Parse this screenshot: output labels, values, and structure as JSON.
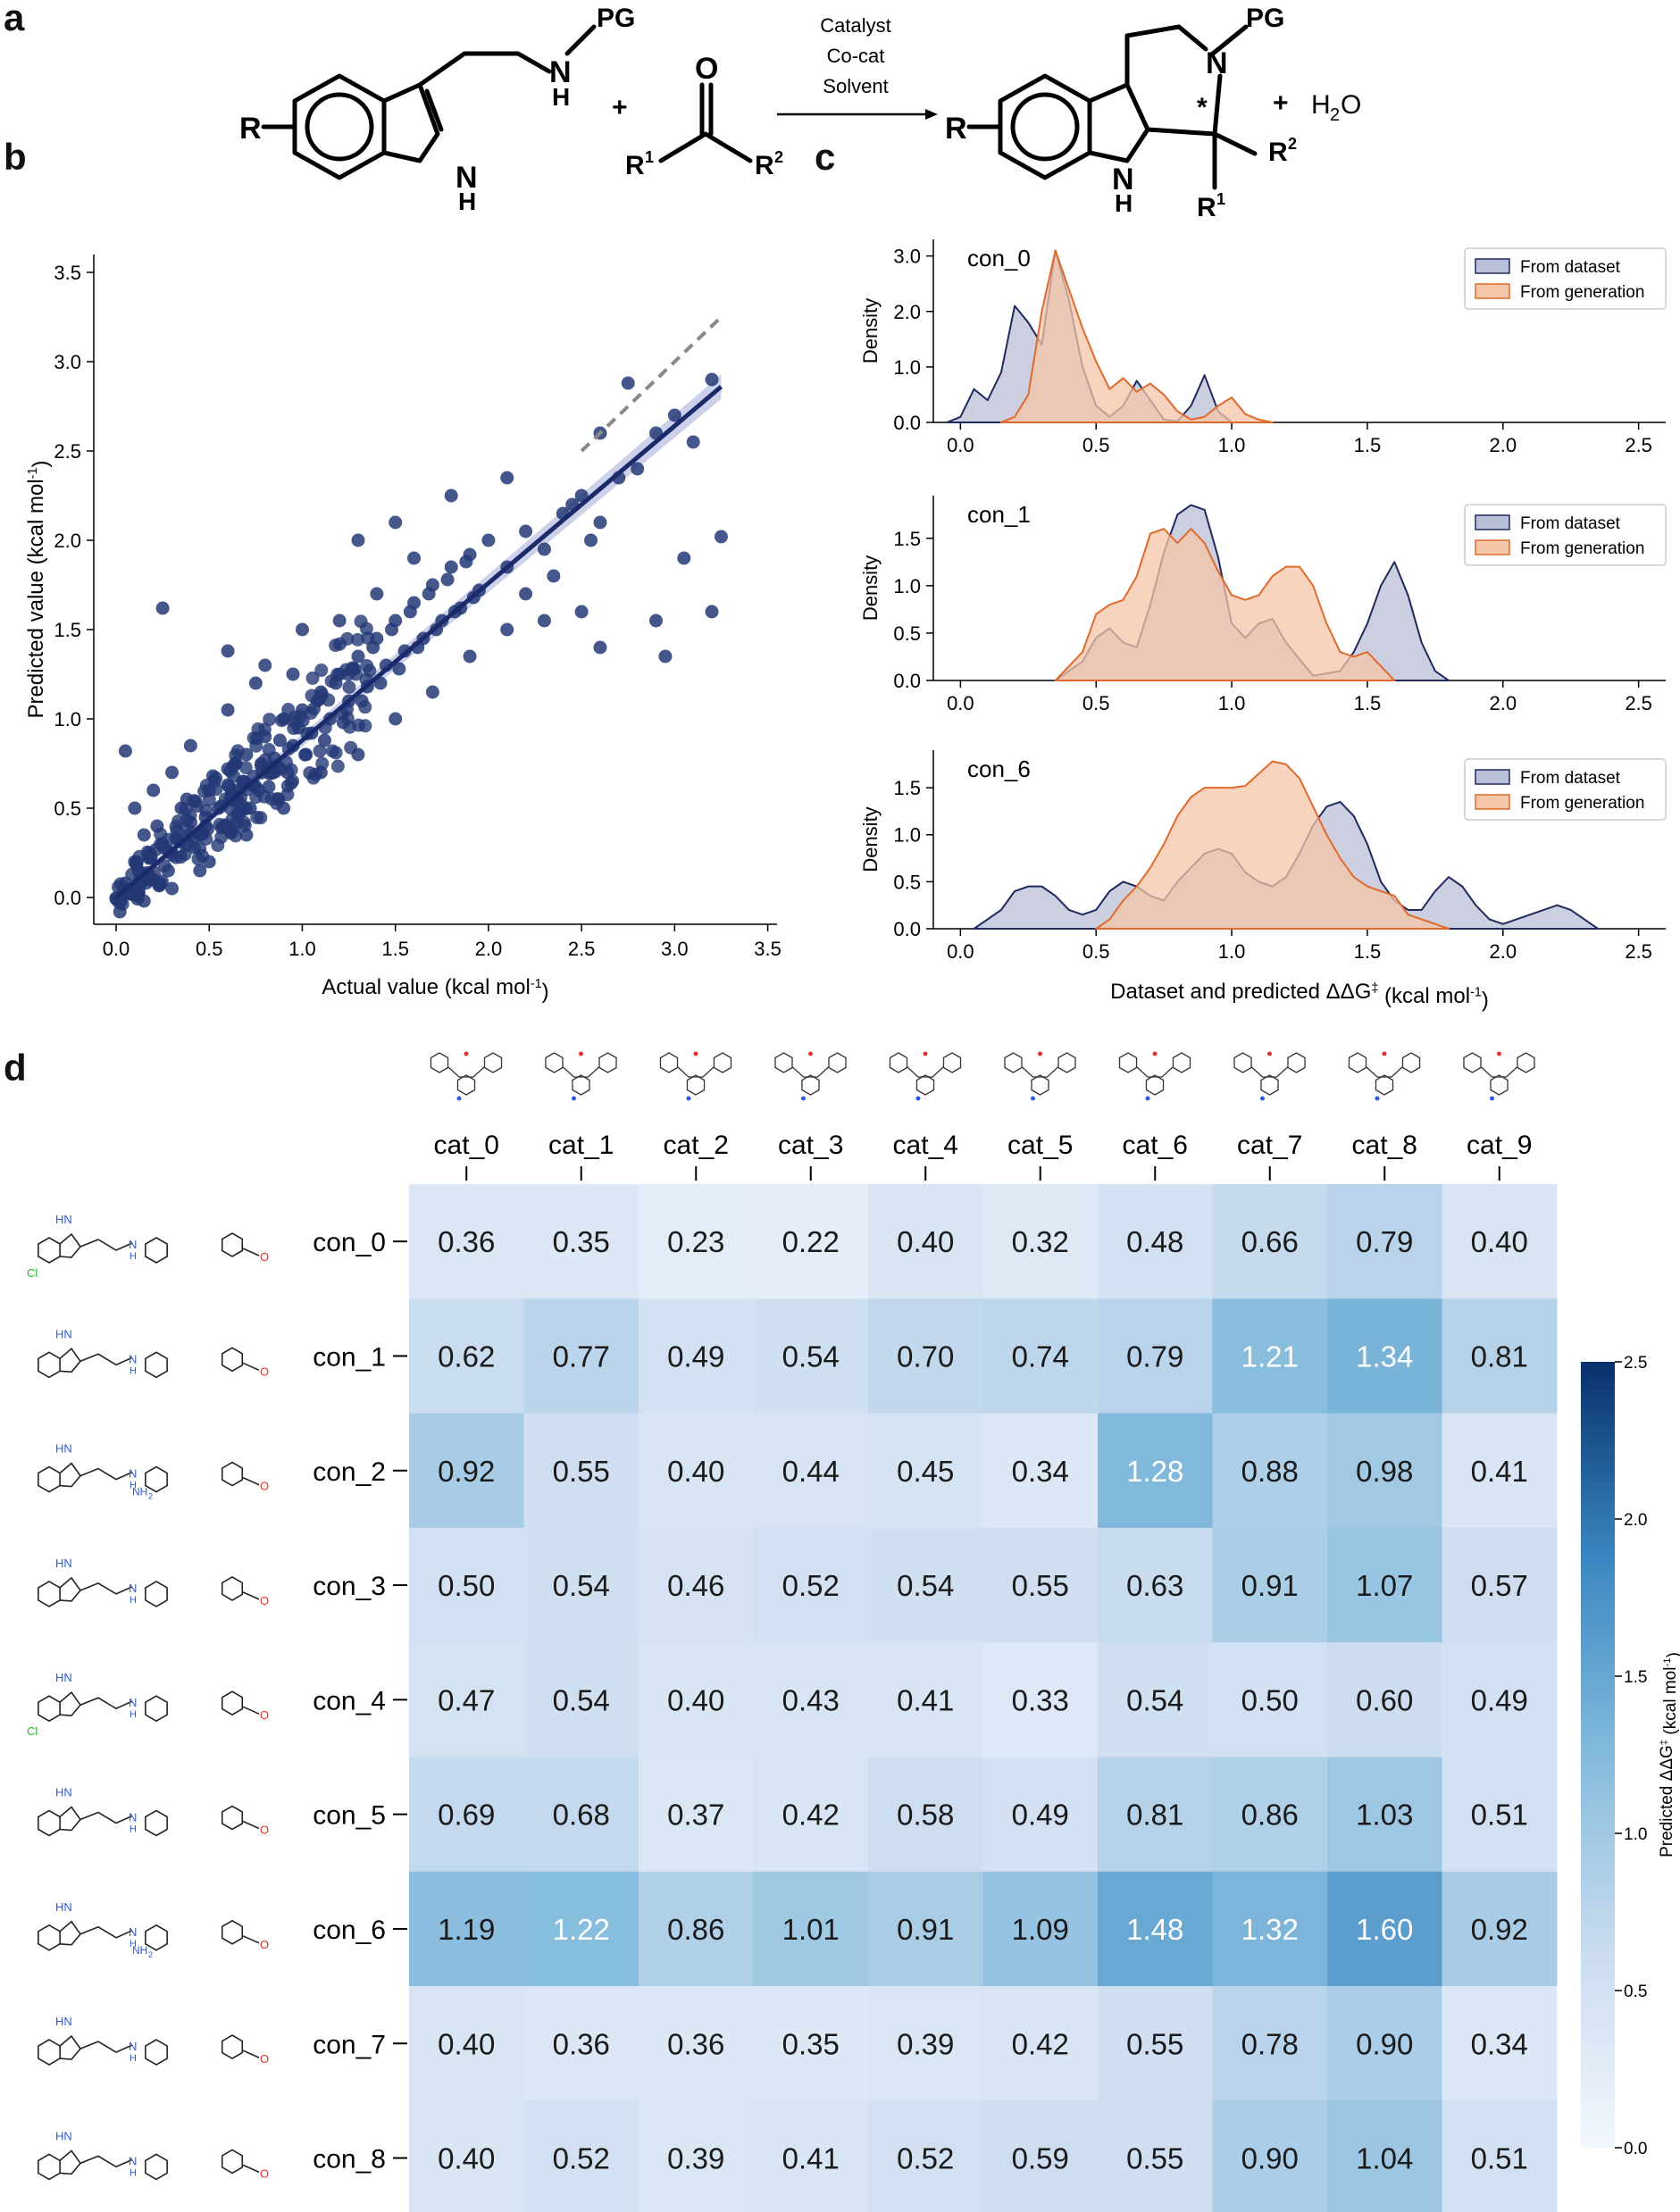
{
  "panels": {
    "a": "a",
    "b": "b",
    "c": "c",
    "d": "d"
  },
  "scheme": {
    "reactant1": {
      "R": "R",
      "PG": "PG",
      "NH": "N",
      "H": "H",
      "NH_indole": "N",
      "H_indole": "H"
    },
    "plus1": "+",
    "ketone": {
      "O": "O",
      "R1": "R",
      "R1_sup": "1",
      "R2": "R",
      "R2_sup": "2"
    },
    "conditions": [
      "Catalyst",
      "Co-cat",
      "Solvent"
    ],
    "product": {
      "R": "R",
      "PG": "PG",
      "N": "N",
      "star": "*",
      "NH": "N",
      "H": "H",
      "R1": "R",
      "R1_sup": "1",
      "R2": "R",
      "R2_sup": "2"
    },
    "plus2": "+",
    "water": {
      "H": "H",
      "sub": "2",
      "O": "O"
    }
  },
  "chart_data": [
    {
      "id": "b",
      "type": "scatter",
      "xlabel": "Actual value (kcal mol",
      "xlabel_sup": "-1",
      "xlabel_end": ")",
      "ylabel": "Predicted value (kcal mol",
      "ylabel_sup": "-1",
      "ylabel_end": ")",
      "xlim": [
        -0.12,
        3.55
      ],
      "ylim": [
        -0.15,
        3.6
      ],
      "xticks": [
        "0.0",
        "0.5",
        "1.0",
        "1.5",
        "2.0",
        "2.5",
        "3.0",
        "3.5"
      ],
      "yticks": [
        "0.0",
        "0.5",
        "1.0",
        "1.5",
        "2.0",
        "2.5",
        "3.0",
        "3.5"
      ],
      "fit": {
        "slope": 0.88,
        "intercept": 0.0,
        "x_range": [
          0.0,
          3.25
        ]
      },
      "identity_line": {
        "x_range": [
          2.5,
          3.25
        ]
      },
      "points": [
        [
          0.05,
          0.08
        ],
        [
          0.1,
          0.2
        ],
        [
          0.15,
          0.35
        ],
        [
          0.2,
          0.1
        ],
        [
          0.25,
          0.3
        ],
        [
          0.3,
          0.25
        ],
        [
          0.35,
          0.5
        ],
        [
          0.4,
          0.42
        ],
        [
          0.45,
          0.35
        ],
        [
          0.5,
          0.6
        ],
        [
          0.55,
          0.5
        ],
        [
          0.6,
          0.72
        ],
        [
          0.65,
          0.55
        ],
        [
          0.7,
          0.8
        ],
        [
          0.75,
          0.62
        ],
        [
          0.8,
          0.9
        ],
        [
          0.85,
          0.78
        ],
        [
          0.9,
          1.0
        ],
        [
          0.95,
          0.85
        ],
        [
          1.0,
          1.05
        ],
        [
          1.05,
          0.92
        ],
        [
          1.1,
          1.15
        ],
        [
          1.15,
          1.0
        ],
        [
          1.2,
          1.25
        ],
        [
          1.25,
          1.1
        ],
        [
          1.3,
          1.35
        ],
        [
          1.35,
          1.18
        ],
        [
          1.4,
          1.45
        ],
        [
          1.45,
          1.3
        ],
        [
          1.5,
          1.55
        ],
        [
          1.55,
          1.38
        ],
        [
          1.6,
          1.65
        ],
        [
          1.65,
          1.45
        ],
        [
          1.7,
          1.75
        ],
        [
          1.75,
          1.55
        ],
        [
          1.8,
          1.85
        ],
        [
          1.85,
          1.62
        ],
        [
          1.9,
          1.92
        ],
        [
          1.95,
          1.72
        ],
        [
          2.0,
          2.0
        ],
        [
          2.1,
          1.85
        ],
        [
          2.2,
          2.05
        ],
        [
          2.3,
          1.95
        ],
        [
          2.4,
          2.15
        ],
        [
          2.5,
          2.25
        ],
        [
          2.6,
          2.1
        ],
        [
          2.7,
          2.35
        ],
        [
          2.75,
          2.88
        ],
        [
          2.8,
          2.4
        ],
        [
          2.9,
          2.6
        ],
        [
          3.0,
          2.7
        ],
        [
          3.1,
          2.55
        ],
        [
          3.2,
          2.9
        ],
        [
          3.25,
          2.02
        ],
        [
          3.2,
          1.6
        ],
        [
          3.05,
          1.9
        ],
        [
          2.9,
          1.55
        ],
        [
          2.95,
          1.35
        ],
        [
          2.5,
          1.6
        ],
        [
          2.6,
          1.4
        ],
        [
          2.3,
          1.55
        ],
        [
          2.2,
          1.7
        ],
        [
          0.25,
          1.62
        ],
        [
          0.6,
          1.38
        ],
        [
          0.75,
          1.2
        ],
        [
          1.5,
          2.1
        ],
        [
          1.8,
          2.25
        ],
        [
          2.1,
          2.35
        ],
        [
          1.3,
          2.0
        ],
        [
          1.0,
          1.5
        ],
        [
          0.8,
          1.3
        ],
        [
          0.6,
          1.05
        ],
        [
          0.4,
          0.85
        ],
        [
          0.3,
          0.7
        ],
        [
          0.2,
          0.6
        ],
        [
          0.1,
          0.5
        ],
        [
          0.05,
          0.82
        ],
        [
          0.5,
          0.2
        ],
        [
          0.7,
          0.35
        ],
        [
          0.9,
          0.5
        ],
        [
          1.1,
          0.7
        ],
        [
          1.3,
          0.8
        ],
        [
          1.5,
          1.0
        ],
        [
          1.7,
          1.15
        ],
        [
          1.9,
          1.35
        ],
        [
          2.1,
          1.5
        ],
        [
          0.15,
          -0.02
        ],
        [
          0.3,
          0.05
        ],
        [
          0.45,
          0.15
        ],
        [
          0.02,
          -0.08
        ],
        [
          0.08,
          0.02
        ],
        [
          0.12,
          0.15
        ],
        [
          0.18,
          0.25
        ],
        [
          0.22,
          0.4
        ],
        [
          0.28,
          0.15
        ],
        [
          0.33,
          0.33
        ],
        [
          0.38,
          0.55
        ],
        [
          0.42,
          0.28
        ],
        [
          0.48,
          0.45
        ],
        [
          0.52,
          0.68
        ],
        [
          0.58,
          0.4
        ],
        [
          0.62,
          0.58
        ],
        [
          0.68,
          0.65
        ],
        [
          0.72,
          0.5
        ],
        [
          0.78,
          0.75
        ],
        [
          0.82,
          0.62
        ],
        [
          0.88,
          0.88
        ],
        [
          0.92,
          0.7
        ],
        [
          0.98,
          0.95
        ],
        [
          1.02,
          0.8
        ],
        [
          1.08,
          1.1
        ],
        [
          1.12,
          0.88
        ],
        [
          1.18,
          1.2
        ],
        [
          1.22,
          0.98
        ],
        [
          1.28,
          1.28
        ],
        [
          1.32,
          1.1
        ],
        [
          1.38,
          1.4
        ],
        [
          1.42,
          1.2
        ],
        [
          1.48,
          1.5
        ],
        [
          1.52,
          1.28
        ],
        [
          1.58,
          1.6
        ],
        [
          1.62,
          1.4
        ],
        [
          1.68,
          1.7
        ],
        [
          1.72,
          1.5
        ],
        [
          1.78,
          1.78
        ],
        [
          1.82,
          1.6
        ],
        [
          1.88,
          1.88
        ],
        [
          1.92,
          1.68
        ],
        [
          2.6,
          2.6
        ],
        [
          2.45,
          2.2
        ],
        [
          2.55,
          2.0
        ],
        [
          2.35,
          1.8
        ],
        [
          1.6,
          1.9
        ],
        [
          1.4,
          1.7
        ],
        [
          1.2,
          1.55
        ],
        [
          0.95,
          1.25
        ]
      ]
    },
    {
      "id": "c",
      "type": "area",
      "xlabel": "Dataset and predicted ΔΔG",
      "xlabel_sup": "‡",
      "xlabel_end": " (kcal mol",
      "xlabel_sup2": "-1",
      "xlabel_end2": ")",
      "ylabel": "Density",
      "xlim": [
        -0.1,
        2.6
      ],
      "xticks": [
        "0.0",
        "0.5",
        "1.0",
        "1.5",
        "2.0",
        "2.5"
      ],
      "legend": [
        "From dataset",
        "From generation"
      ],
      "colors": {
        "dataset": "#1f2a5e",
        "dataset_fill": "#b9bfd6",
        "generation": "#e06a2c",
        "generation_fill": "#f5c6a8"
      },
      "subplots": [
        {
          "label": "con_0",
          "ylim": [
            0,
            3.3
          ],
          "yticks": [
            "0.0",
            "1.0",
            "2.0",
            "3.0"
          ],
          "dataset": {
            "x": [
              -0.05,
              0.0,
              0.05,
              0.1,
              0.15,
              0.2,
              0.25,
              0.3,
              0.35,
              0.4,
              0.45,
              0.5,
              0.55,
              0.6,
              0.65,
              0.7,
              0.75,
              0.8,
              0.85,
              0.9,
              0.95,
              1.0,
              1.05
            ],
            "y": [
              0.0,
              0.1,
              0.6,
              0.4,
              0.9,
              2.1,
              1.8,
              1.4,
              3.1,
              2.2,
              1.0,
              0.3,
              0.1,
              0.3,
              0.75,
              0.4,
              0.05,
              0.02,
              0.3,
              0.85,
              0.2,
              0.0,
              0.0
            ]
          },
          "generation": {
            "x": [
              0.15,
              0.2,
              0.25,
              0.3,
              0.35,
              0.4,
              0.45,
              0.5,
              0.55,
              0.6,
              0.65,
              0.7,
              0.75,
              0.8,
              0.85,
              0.9,
              0.95,
              1.0,
              1.05,
              1.1,
              1.15
            ],
            "y": [
              0.0,
              0.1,
              0.5,
              2.0,
              3.1,
              2.4,
              1.7,
              1.1,
              0.6,
              0.8,
              0.55,
              0.7,
              0.5,
              0.2,
              0.05,
              0.1,
              0.3,
              0.45,
              0.15,
              0.05,
              0.0
            ]
          }
        },
        {
          "label": "con_1",
          "ylim": [
            0,
            1.95
          ],
          "yticks": [
            "0.0",
            "0.5",
            "1.0",
            "1.5"
          ],
          "dataset": {
            "x": [
              0.35,
              0.45,
              0.5,
              0.55,
              0.6,
              0.65,
              0.7,
              0.75,
              0.8,
              0.85,
              0.9,
              0.95,
              1.0,
              1.05,
              1.1,
              1.15,
              1.2,
              1.3,
              1.4,
              1.45,
              1.5,
              1.55,
              1.6,
              1.65,
              1.7,
              1.75,
              1.8
            ],
            "y": [
              0.0,
              0.2,
              0.45,
              0.55,
              0.4,
              0.35,
              0.8,
              1.35,
              1.75,
              1.85,
              1.8,
              1.3,
              0.6,
              0.45,
              0.6,
              0.65,
              0.4,
              0.05,
              0.1,
              0.3,
              0.6,
              1.0,
              1.25,
              0.9,
              0.4,
              0.1,
              0.0
            ]
          },
          "generation": {
            "x": [
              0.35,
              0.45,
              0.5,
              0.55,
              0.6,
              0.65,
              0.7,
              0.75,
              0.8,
              0.85,
              0.9,
              0.95,
              1.0,
              1.05,
              1.1,
              1.15,
              1.2,
              1.25,
              1.3,
              1.35,
              1.4,
              1.45,
              1.5,
              1.55,
              1.6
            ],
            "y": [
              0.0,
              0.3,
              0.7,
              0.8,
              0.85,
              1.1,
              1.55,
              1.6,
              1.45,
              1.6,
              1.45,
              1.15,
              0.9,
              0.85,
              0.9,
              1.1,
              1.2,
              1.2,
              1.0,
              0.6,
              0.3,
              0.25,
              0.3,
              0.15,
              0.0
            ]
          }
        },
        {
          "label": "con_6",
          "ylim": [
            0,
            1.9
          ],
          "yticks": [
            "0.0",
            "0.5",
            "1.0",
            "1.5"
          ],
          "dataset": {
            "x": [
              0.05,
              0.15,
              0.2,
              0.25,
              0.3,
              0.35,
              0.4,
              0.45,
              0.5,
              0.55,
              0.6,
              0.65,
              0.7,
              0.75,
              0.8,
              0.85,
              0.9,
              0.95,
              1.0,
              1.05,
              1.1,
              1.15,
              1.2,
              1.25,
              1.3,
              1.35,
              1.4,
              1.45,
              1.5,
              1.55,
              1.6,
              1.65,
              1.7,
              1.75,
              1.8,
              1.85,
              1.9,
              1.95,
              2.0,
              2.05,
              2.1,
              2.15,
              2.2,
              2.25,
              2.3,
              2.35
            ],
            "y": [
              0.0,
              0.2,
              0.4,
              0.45,
              0.45,
              0.35,
              0.2,
              0.15,
              0.2,
              0.4,
              0.5,
              0.45,
              0.35,
              0.3,
              0.5,
              0.65,
              0.8,
              0.85,
              0.8,
              0.6,
              0.5,
              0.45,
              0.55,
              0.8,
              1.1,
              1.3,
              1.35,
              1.2,
              0.9,
              0.5,
              0.3,
              0.2,
              0.2,
              0.4,
              0.55,
              0.45,
              0.25,
              0.1,
              0.05,
              0.1,
              0.15,
              0.2,
              0.25,
              0.2,
              0.1,
              0.0
            ]
          },
          "generation": {
            "x": [
              0.5,
              0.55,
              0.6,
              0.65,
              0.7,
              0.75,
              0.8,
              0.85,
              0.9,
              0.95,
              1.0,
              1.05,
              1.1,
              1.15,
              1.2,
              1.25,
              1.3,
              1.35,
              1.4,
              1.45,
              1.5,
              1.55,
              1.6,
              1.65,
              1.7,
              1.75,
              1.8
            ],
            "y": [
              0.0,
              0.1,
              0.3,
              0.45,
              0.65,
              0.9,
              1.2,
              1.4,
              1.5,
              1.5,
              1.5,
              1.52,
              1.65,
              1.78,
              1.75,
              1.6,
              1.3,
              1.0,
              0.75,
              0.55,
              0.45,
              0.4,
              0.35,
              0.15,
              0.1,
              0.05,
              0.0
            ]
          }
        }
      ]
    },
    {
      "id": "d",
      "type": "heatmap",
      "columns": [
        "cat_0",
        "cat_1",
        "cat_2",
        "cat_3",
        "cat_4",
        "cat_5",
        "cat_6",
        "cat_7",
        "cat_8",
        "cat_9"
      ],
      "rows": [
        "con_0",
        "con_1",
        "con_2",
        "con_3",
        "con_4",
        "con_5",
        "con_6",
        "con_7",
        "con_8"
      ],
      "values": [
        [
          "0.36",
          "0.35",
          "0.23",
          "0.22",
          "0.40",
          "0.32",
          "0.48",
          "0.66",
          "0.79",
          "0.40"
        ],
        [
          "0.62",
          "0.77",
          "0.49",
          "0.54",
          "0.70",
          "0.74",
          "0.79",
          "1.21",
          "1.34",
          "0.81"
        ],
        [
          "0.92",
          "0.55",
          "0.40",
          "0.44",
          "0.45",
          "0.34",
          "1.28",
          "0.88",
          "0.98",
          "0.41"
        ],
        [
          "0.50",
          "0.54",
          "0.46",
          "0.52",
          "0.54",
          "0.55",
          "0.63",
          "0.91",
          "1.07",
          "0.57"
        ],
        [
          "0.47",
          "0.54",
          "0.40",
          "0.43",
          "0.41",
          "0.33",
          "0.54",
          "0.50",
          "0.60",
          "0.49"
        ],
        [
          "0.69",
          "0.68",
          "0.37",
          "0.42",
          "0.58",
          "0.49",
          "0.81",
          "0.86",
          "1.03",
          "0.51"
        ],
        [
          "1.19",
          "1.22",
          "0.86",
          "1.01",
          "0.91",
          "1.09",
          "1.48",
          "1.32",
          "1.60",
          "0.92"
        ],
        [
          "0.40",
          "0.36",
          "0.36",
          "0.35",
          "0.39",
          "0.42",
          "0.55",
          "0.78",
          "0.90",
          "0.34"
        ],
        [
          "0.40",
          "0.52",
          "0.39",
          "0.41",
          "0.52",
          "0.59",
          "0.55",
          "0.90",
          "1.04",
          "0.51"
        ]
      ],
      "colorbar": {
        "min": 0.0,
        "max": 2.5,
        "ticks": [
          "0.0",
          "0.5",
          "1.0",
          "1.5",
          "2.0",
          "2.5"
        ],
        "label": "Predicted ΔΔG",
        "label_sup": "‡",
        "label_end": " (kcal mol",
        "label_sup2": "-1",
        "label_end2": ")"
      },
      "molecule_labels": {
        "Cl": "Cl",
        "NH2": "NH",
        "NH2_sub": "2",
        "O": "O",
        "HN": "HN",
        "H": "H",
        "N": "N"
      }
    }
  ]
}
